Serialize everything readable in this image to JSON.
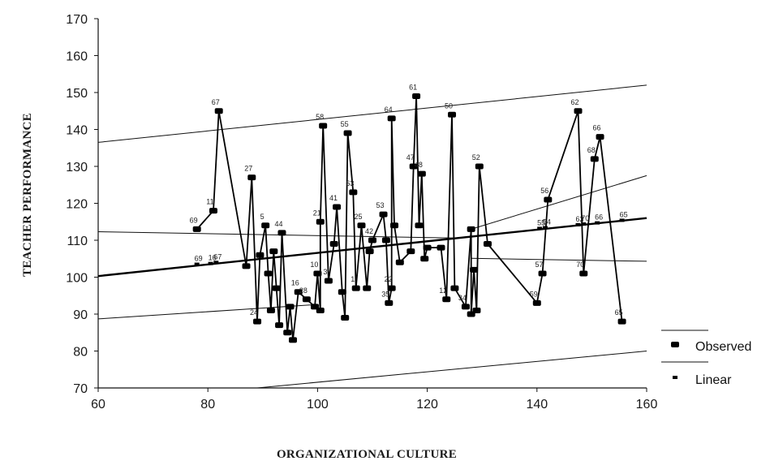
{
  "chart_data": {
    "type": "scatter",
    "xlabel": "ORGANIZATIONAL CULTURE",
    "ylabel": "TEACHER PERFORMANCE",
    "xlim": [
      60,
      160
    ],
    "ylim": [
      70,
      170
    ],
    "xticks": [
      60,
      80,
      100,
      120,
      140,
      160
    ],
    "yticks": [
      70,
      80,
      90,
      100,
      110,
      120,
      130,
      140,
      150,
      160,
      170
    ],
    "grid": false,
    "legend_position": "bottom-right",
    "legend": [
      "Observed",
      "Linear"
    ],
    "observed": [
      {
        "x": 78,
        "y": 113,
        "label": "69"
      },
      {
        "x": 81,
        "y": 118,
        "label": "11"
      },
      {
        "x": 82,
        "y": 145,
        "label": "67"
      },
      {
        "x": 87,
        "y": 103,
        "label": ""
      },
      {
        "x": 88,
        "y": 127,
        "label": "27"
      },
      {
        "x": 89,
        "y": 88,
        "label": "24"
      },
      {
        "x": 89.5,
        "y": 106,
        "label": ""
      },
      {
        "x": 90.5,
        "y": 114,
        "label": "5"
      },
      {
        "x": 91,
        "y": 101,
        "label": ""
      },
      {
        "x": 91.5,
        "y": 91,
        "label": ""
      },
      {
        "x": 92,
        "y": 107,
        "label": ""
      },
      {
        "x": 92.5,
        "y": 97,
        "label": ""
      },
      {
        "x": 93,
        "y": 87,
        "label": ""
      },
      {
        "x": 93.5,
        "y": 112,
        "label": "44"
      },
      {
        "x": 94.5,
        "y": 85,
        "label": ""
      },
      {
        "x": 95,
        "y": 92,
        "label": ""
      },
      {
        "x": 95.5,
        "y": 83,
        "label": ""
      },
      {
        "x": 96.5,
        "y": 96,
        "label": "16"
      },
      {
        "x": 98,
        "y": 94,
        "label": "28"
      },
      {
        "x": 99.5,
        "y": 92,
        "label": ""
      },
      {
        "x": 100,
        "y": 101,
        "label": "10"
      },
      {
        "x": 100.5,
        "y": 91,
        "label": ""
      },
      {
        "x": 100.5,
        "y": 115,
        "label": "21"
      },
      {
        "x": 101,
        "y": 141,
        "label": "58"
      },
      {
        "x": 102,
        "y": 99,
        "label": "3"
      },
      {
        "x": 103,
        "y": 109,
        "label": ""
      },
      {
        "x": 103.5,
        "y": 119,
        "label": "41"
      },
      {
        "x": 104.5,
        "y": 96,
        "label": ""
      },
      {
        "x": 105,
        "y": 89,
        "label": ""
      },
      {
        "x": 105.5,
        "y": 139,
        "label": "55"
      },
      {
        "x": 106.5,
        "y": 123,
        "label": "63"
      },
      {
        "x": 107,
        "y": 97,
        "label": "1"
      },
      {
        "x": 108,
        "y": 114,
        "label": "25"
      },
      {
        "x": 109,
        "y": 97,
        "label": ""
      },
      {
        "x": 109.5,
        "y": 107,
        "label": ""
      },
      {
        "x": 110,
        "y": 110,
        "label": "42"
      },
      {
        "x": 112,
        "y": 117,
        "label": "53"
      },
      {
        "x": 112.5,
        "y": 110,
        "label": ""
      },
      {
        "x": 113,
        "y": 93,
        "label": "35"
      },
      {
        "x": 113.5,
        "y": 97,
        "label": "22"
      },
      {
        "x": 113.5,
        "y": 143,
        "label": "64"
      },
      {
        "x": 114,
        "y": 114,
        "label": ""
      },
      {
        "x": 115,
        "y": 104,
        "label": ""
      },
      {
        "x": 117,
        "y": 107,
        "label": ""
      },
      {
        "x": 117.5,
        "y": 130,
        "label": "47"
      },
      {
        "x": 118,
        "y": 149,
        "label": "61"
      },
      {
        "x": 118.5,
        "y": 114,
        "label": ""
      },
      {
        "x": 119,
        "y": 128,
        "label": "48"
      },
      {
        "x": 119.5,
        "y": 105,
        "label": ""
      },
      {
        "x": 120,
        "y": 108,
        "label": ""
      },
      {
        "x": 122.5,
        "y": 108,
        "label": ""
      },
      {
        "x": 123.5,
        "y": 94,
        "label": "12"
      },
      {
        "x": 124.5,
        "y": 144,
        "label": "50"
      },
      {
        "x": 125,
        "y": 97,
        "label": ""
      },
      {
        "x": 127,
        "y": 92,
        "label": "34"
      },
      {
        "x": 128,
        "y": 113,
        "label": ""
      },
      {
        "x": 128,
        "y": 90,
        "label": ""
      },
      {
        "x": 128.5,
        "y": 102,
        "label": ""
      },
      {
        "x": 129,
        "y": 91,
        "label": ""
      },
      {
        "x": 129.5,
        "y": 130,
        "label": "52"
      },
      {
        "x": 131,
        "y": 109,
        "label": ""
      },
      {
        "x": 140,
        "y": 93,
        "label": "59"
      },
      {
        "x": 141,
        "y": 101,
        "label": "57"
      },
      {
        "x": 142,
        "y": 121,
        "label": "56"
      },
      {
        "x": 147.5,
        "y": 145,
        "label": "62"
      },
      {
        "x": 148.5,
        "y": 101,
        "label": "70"
      },
      {
        "x": 150.5,
        "y": 132,
        "label": "68"
      },
      {
        "x": 151.5,
        "y": 138,
        "label": "66"
      },
      {
        "x": 155.5,
        "y": 88,
        "label": "65"
      }
    ],
    "linear_fit": {
      "x0": 60,
      "y0": 100.3,
      "x1": 160,
      "y1": 116.0
    },
    "linear_points": [
      {
        "x": 78,
        "y": 103.5,
        "label": "69"
      },
      {
        "x": 80.5,
        "y": 103.7,
        "label": "16"
      },
      {
        "x": 81.5,
        "y": 104.0,
        "label": "67"
      },
      {
        "x": 140.5,
        "y": 113.2,
        "label": "55"
      },
      {
        "x": 141.5,
        "y": 113.4,
        "label": "54"
      },
      {
        "x": 147.5,
        "y": 114.2,
        "label": "62"
      },
      {
        "x": 148.5,
        "y": 114.4,
        "label": "70"
      },
      {
        "x": 151,
        "y": 114.7,
        "label": "66"
      },
      {
        "x": 155.5,
        "y": 115.4,
        "label": "65"
      }
    ],
    "confidence_mean": {
      "upper": [
        [
          60,
          112.3
        ],
        [
          125,
          110.6
        ]
      ],
      "lower": [
        [
          60,
          88.7
        ],
        [
          100,
          92.6
        ]
      ],
      "upper_right": [
        [
          128,
          113.0
        ],
        [
          160,
          127.5
        ]
      ],
      "lower_right": [
        [
          128,
          105.1
        ],
        [
          160,
          104.3
        ]
      ]
    },
    "prediction_interval": {
      "upper": [
        [
          60,
          136.5
        ],
        [
          160,
          152.0
        ]
      ],
      "lower": [
        [
          89,
          70.0
        ],
        [
          160,
          80.0
        ]
      ]
    }
  }
}
